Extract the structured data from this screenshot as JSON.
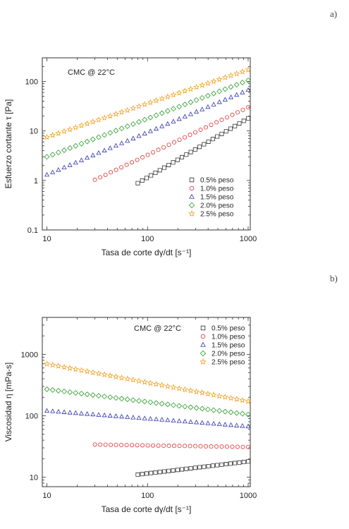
{
  "panel_labels": {
    "a": "a)",
    "b": "b)"
  },
  "chart_data": [
    {
      "type": "scatter",
      "id": "a",
      "xscale": "log",
      "yscale": "log",
      "xlim": [
        9,
        1050
      ],
      "ylim": [
        0.1,
        300
      ],
      "xlabel": "Tasa de corte dγ/dt [s⁻¹]",
      "ylabel": "Esfuerzo cortante τ [Pa]",
      "xticks": [
        10,
        100,
        1000
      ],
      "xtick_labels": [
        "10",
        "100",
        "1000"
      ],
      "yticks": [
        0.1,
        1,
        10,
        100
      ],
      "ytick_labels": [
        "0.1",
        "1",
        "10",
        "100"
      ],
      "annotation": "CMC @ 22°C",
      "legend_position": "bottom-right",
      "series": [
        {
          "name": "0.5% peso",
          "marker": "square",
          "color": "#333333",
          "x_start": 80,
          "x_end": 1000,
          "count": 26,
          "y_start": 0.88,
          "y_end": 18
        },
        {
          "name": "1.0% peso",
          "marker": "circle",
          "color": "#e03030",
          "x_start": 30,
          "x_end": 1000,
          "count": 30,
          "y_start": 1.03,
          "y_end": 30
        },
        {
          "name": "1.5% peso",
          "marker": "triangle",
          "color": "#3030b0",
          "x_start": 10,
          "x_end": 1000,
          "count": 36,
          "y_start": 1.3,
          "y_end": 67
        },
        {
          "name": "2.0% peso",
          "marker": "diamond",
          "color": "#2a9a2a",
          "x_start": 10,
          "x_end": 1000,
          "count": 36,
          "y_start": 3.0,
          "y_end": 105
        },
        {
          "name": "2.5% peso",
          "marker": "star",
          "color": "#f0a020",
          "x_start": 10,
          "x_end": 1000,
          "count": 36,
          "y_start": 7.5,
          "y_end": 172
        }
      ]
    },
    {
      "type": "scatter",
      "id": "b",
      "xscale": "log",
      "yscale": "log",
      "xlim": [
        9,
        1050
      ],
      "ylim": [
        7,
        4000
      ],
      "xlabel": "Tasa de corte dγ/dt [s⁻¹]",
      "ylabel": "Viscosidad η [mPa-s]",
      "xticks": [
        10,
        100,
        1000
      ],
      "xtick_labels": [
        "10",
        "100",
        "1000"
      ],
      "yticks": [
        10,
        100,
        1000
      ],
      "ytick_labels": [
        "10",
        "100",
        "1000"
      ],
      "annotation": "CMC @ 22°C",
      "legend_position": "top-right",
      "series": [
        {
          "name": "0.5% peso",
          "marker": "square",
          "color": "#333333",
          "x_start": 80,
          "x_end": 1000,
          "count": 26,
          "y_start": 11,
          "y_end": 18
        },
        {
          "name": "1.0% peso",
          "marker": "circle",
          "color": "#e03030",
          "x_start": 30,
          "x_end": 1000,
          "count": 30,
          "y_start": 34,
          "y_end": 31
        },
        {
          "name": "1.5% peso",
          "marker": "triangle",
          "color": "#3030b0",
          "x_start": 10,
          "x_end": 1000,
          "count": 36,
          "y_start": 120,
          "y_end": 67
        },
        {
          "name": "2.0% peso",
          "marker": "diamond",
          "color": "#2a9a2a",
          "x_start": 10,
          "x_end": 1000,
          "count": 36,
          "y_start": 270,
          "y_end": 105
        },
        {
          "name": "2.5% peso",
          "marker": "star",
          "color": "#f0a020",
          "x_start": 10,
          "x_end": 1000,
          "count": 36,
          "y_start": 700,
          "y_end": 172
        }
      ]
    }
  ]
}
